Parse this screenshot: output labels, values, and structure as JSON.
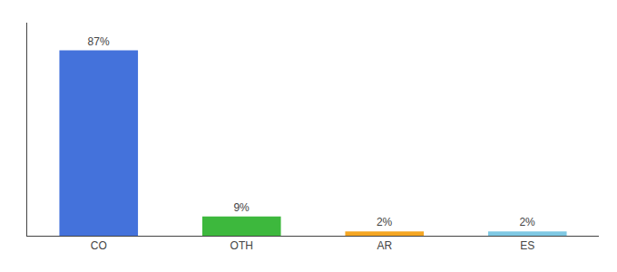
{
  "chart_data": {
    "type": "bar",
    "categories": [
      "CO",
      "OTH",
      "AR",
      "ES"
    ],
    "values": [
      87,
      9,
      2,
      2
    ],
    "value_labels": [
      "87%",
      "9%",
      "2%",
      "2%"
    ],
    "data_labels": true,
    "colors": [
      "#4472db",
      "#3db83d",
      "#f5a623",
      "#7ec8e3"
    ],
    "ylim": [
      0,
      100
    ],
    "yticks": [],
    "tick_labels": "x",
    "grid": false
  }
}
